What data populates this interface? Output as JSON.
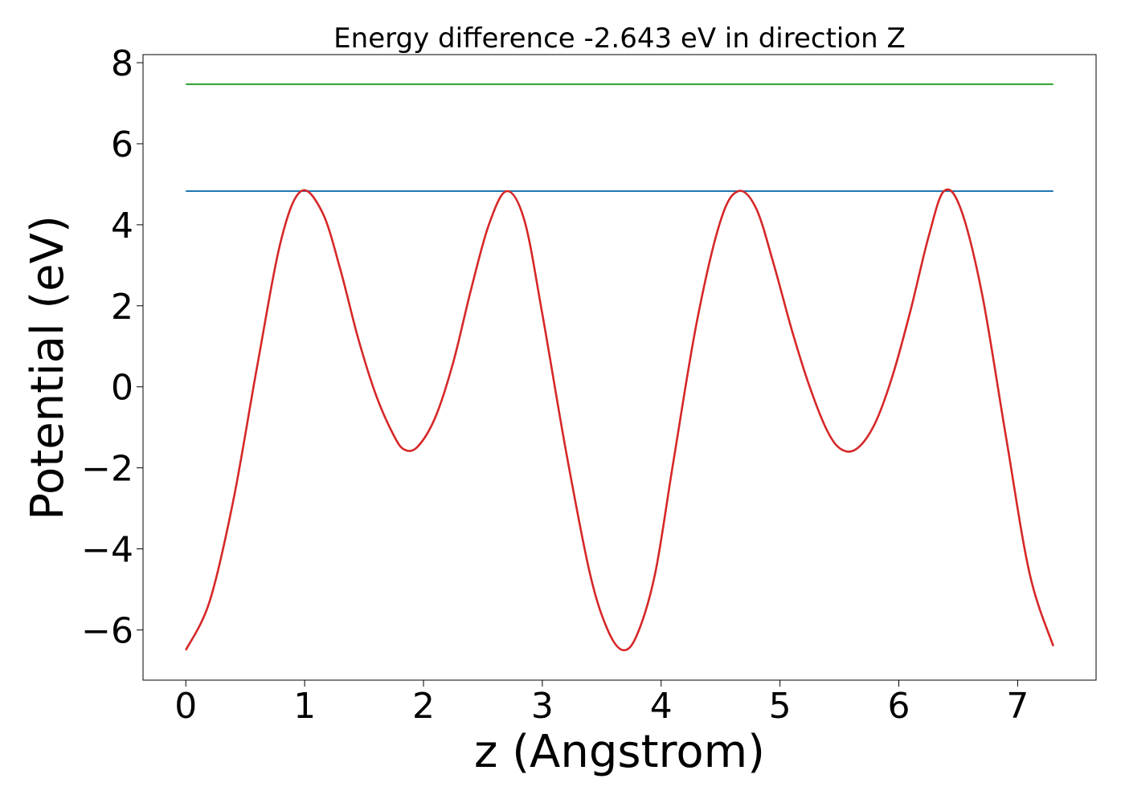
{
  "chart_data": {
    "type": "line",
    "title": "Energy difference -2.643 eV in direction Z",
    "xlabel": "z (Angstrom)",
    "ylabel": "Potential (eV)",
    "xlim": [
      -0.36,
      7.66
    ],
    "ylim": [
      -7.24,
      8.2
    ],
    "xticks": [
      0,
      1,
      2,
      3,
      4,
      5,
      6,
      7
    ],
    "yticks": [
      -6,
      -4,
      -2,
      0,
      2,
      4,
      6,
      8
    ],
    "ytick_labels": [
      "−6",
      "−4",
      "−2",
      "0",
      "2",
      "4",
      "6",
      "8"
    ],
    "grid": false,
    "legend": null,
    "series": [
      {
        "color": "#d62728",
        "style": "curve",
        "x": [
          0.0,
          0.2,
          0.4,
          0.6,
          0.8,
          0.97,
          1.15,
          1.3,
          1.45,
          1.6,
          1.75,
          1.84,
          1.95,
          2.1,
          2.25,
          2.4,
          2.55,
          2.7,
          2.85,
          3.0,
          3.2,
          3.4,
          3.55,
          3.68,
          3.8,
          3.95,
          4.1,
          4.3,
          4.5,
          4.65,
          4.8,
          4.95,
          5.1,
          5.25,
          5.4,
          5.52,
          5.65,
          5.8,
          5.95,
          6.1,
          6.25,
          6.38,
          6.52,
          6.7,
          6.9,
          7.1,
          7.3
        ],
        "y": [
          -6.5,
          -5.3,
          -2.8,
          0.5,
          3.6,
          4.83,
          4.3,
          2.9,
          1.2,
          -0.2,
          -1.2,
          -1.55,
          -1.48,
          -0.75,
          0.6,
          2.4,
          4.0,
          4.83,
          4.1,
          1.8,
          -1.6,
          -4.6,
          -6.0,
          -6.5,
          -6.1,
          -4.6,
          -1.9,
          1.6,
          4.1,
          4.83,
          4.4,
          3.0,
          1.4,
          0.0,
          -1.1,
          -1.55,
          -1.52,
          -0.9,
          0.3,
          1.9,
          3.7,
          4.83,
          4.4,
          2.3,
          -1.2,
          -4.6,
          -6.4
        ]
      },
      {
        "color": "#1f77b4",
        "style": "line",
        "x": [
          0.0,
          7.3
        ],
        "y": [
          4.83,
          4.83
        ]
      },
      {
        "color": "#2ca02c",
        "style": "line",
        "x": [
          0.0,
          7.3
        ],
        "y": [
          7.47,
          7.47
        ]
      }
    ]
  }
}
